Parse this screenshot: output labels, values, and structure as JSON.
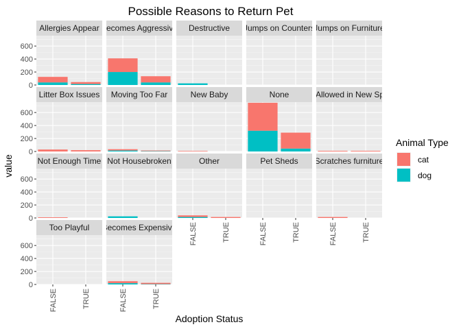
{
  "chart_data": {
    "type": "bar",
    "stacked": true,
    "faceted": true,
    "facet_columns": 5,
    "title": "Possible Reasons to Return Pet",
    "xlabel": "Adoption Status",
    "ylabel": "value",
    "ylim": [
      0,
      760
    ],
    "yticks": [
      0,
      200,
      400,
      600
    ],
    "categories": [
      "FALSE",
      "TRUE"
    ],
    "legend": {
      "title": "Animal Type",
      "position": "right"
    },
    "series_colors": {
      "cat": "#F8766D",
      "dog": "#00BFC4"
    },
    "facets": [
      {
        "label": "Allergies Appear",
        "cat": [
          85,
          30
        ],
        "dog": [
          40,
          15
        ]
      },
      {
        "label": "Becomes Aggressive",
        "cat": [
          210,
          95
        ],
        "dog": [
          200,
          40
        ]
      },
      {
        "label": "Destructive",
        "cat": [
          0,
          0
        ],
        "dog": [
          25,
          0
        ]
      },
      {
        "label": "Jumps on Counters",
        "cat": [
          0,
          0
        ],
        "dog": [
          0,
          0
        ]
      },
      {
        "label": "Jumps on Furniture",
        "cat": [
          0,
          0
        ],
        "dog": [
          0,
          0
        ]
      },
      {
        "label": "Litter Box Issues",
        "cat": [
          30,
          20
        ],
        "dog": [
          0,
          0
        ]
      },
      {
        "label": "Moving Too Far",
        "cat": [
          20,
          10
        ],
        "dog": [
          15,
          5
        ]
      },
      {
        "label": "New Baby",
        "cat": [
          8,
          0
        ],
        "dog": [
          0,
          0
        ]
      },
      {
        "label": "None",
        "cat": [
          430,
          245
        ],
        "dog": [
          320,
          45
        ]
      },
      {
        "label": "Not Allowed in New Space",
        "cat": [
          10,
          10
        ],
        "dog": [
          0,
          0
        ]
      },
      {
        "label": "Not Enough Time",
        "cat": [
          10,
          0
        ],
        "dog": [
          0,
          0
        ]
      },
      {
        "label": "Not Housebroken",
        "cat": [
          0,
          0
        ],
        "dog": [
          25,
          0
        ]
      },
      {
        "label": "Other",
        "cat": [
          25,
          15
        ],
        "dog": [
          15,
          0
        ]
      },
      {
        "label": "Pet Sheds",
        "cat": [
          0,
          0
        ],
        "dog": [
          0,
          0
        ]
      },
      {
        "label": "Scratches furniture",
        "cat": [
          15,
          0
        ],
        "dog": [
          0,
          0
        ]
      },
      {
        "label": "Too Playful",
        "cat": [
          0,
          0
        ],
        "dog": [
          0,
          0
        ]
      },
      {
        "label": "Becomes Expensive",
        "cat": [
          30,
          20
        ],
        "dog": [
          20,
          5
        ]
      }
    ]
  }
}
